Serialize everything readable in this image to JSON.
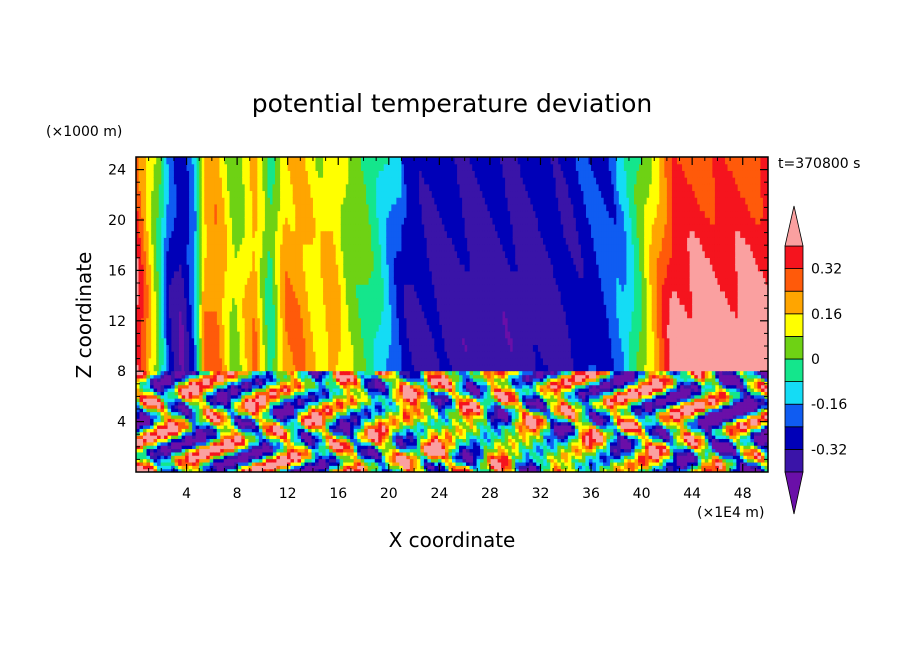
{
  "chart_data": {
    "type": "heatmap",
    "title": "potential temperature deviation",
    "xlabel": "X coordinate",
    "ylabel": "Z coordinate",
    "x_unit": "(×1E4 m)",
    "y_unit": "(×1000 m)",
    "time_label": "t=370800 s",
    "xlim": [
      0,
      50
    ],
    "ylim": [
      0,
      25
    ],
    "x_ticks": [
      4,
      8,
      12,
      16,
      20,
      24,
      28,
      32,
      36,
      40,
      44,
      48
    ],
    "x_tick_labels": [
      "4",
      "8",
      "12",
      "16",
      "20",
      "24",
      "28",
      "32",
      "36",
      "40",
      "44",
      "48"
    ],
    "y_ticks": [
      4,
      8,
      12,
      16,
      20,
      24
    ],
    "y_tick_labels": [
      "4",
      "8",
      "12",
      "16",
      "20",
      "24"
    ],
    "colorbar": {
      "levels": [
        -0.4,
        -0.32,
        -0.24,
        -0.16,
        -0.08,
        0,
        0.08,
        0.16,
        0.24,
        0.32,
        0.4
      ],
      "tick_values": [
        0.32,
        0.16,
        0,
        -0.16,
        -0.32
      ],
      "tick_labels": [
        "0.32",
        "0.16",
        "0",
        "-0.16",
        "-0.32"
      ],
      "colors": [
        "#6a0fa8",
        "#3a14a8",
        "#0000b8",
        "#0f5cf2",
        "#14dcf5",
        "#14e68c",
        "#6ed214",
        "#ffff00",
        "#ffa500",
        "#ff5a0a",
        "#f5141e",
        "#faa0a0"
      ],
      "extend": "both"
    },
    "tropopause_z": 8,
    "upper_layer_profile": {
      "x": [
        0,
        1.8,
        2.6,
        3.6,
        4.6,
        5.4,
        6.4,
        7.8,
        9.4,
        10.6,
        11.8,
        13.0,
        14.4,
        15.6,
        16.8,
        18.0,
        19.2,
        20.6,
        22,
        26,
        30,
        34,
        38.6,
        39.8,
        41.2,
        42.6,
        44.2,
        46.2,
        50
      ],
      "value": [
        0.45,
        0.0,
        -0.3,
        -0.4,
        -0.22,
        0.22,
        0.28,
        0.05,
        0.24,
        -0.05,
        0.24,
        0.24,
        0.14,
        0.22,
        0.06,
        0.02,
        -0.08,
        -0.25,
        -0.32,
        -0.36,
        -0.36,
        -0.33,
        -0.18,
        0.0,
        0.24,
        0.45,
        0.45,
        0.45,
        0.45
      ]
    }
  }
}
